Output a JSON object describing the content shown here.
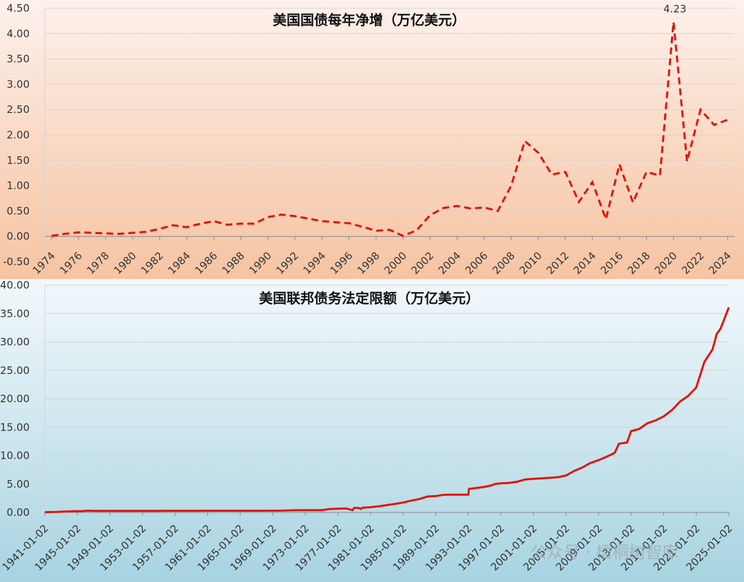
{
  "watermark": "公众号 · 梧桐树智库",
  "colors": {
    "line": "#e3120b",
    "grid": "#d4d4d4",
    "axis": "#888888",
    "negative_tick": "#e3120b"
  },
  "chart_data": [
    {
      "id": "top",
      "type": "line",
      "style": "dashed",
      "title": "美国国债每年净增（万亿美元）",
      "x_tick_labels": [
        "1974",
        "1976",
        "1978",
        "1980",
        "1982",
        "1984",
        "1986",
        "1988",
        "1990",
        "1992",
        "1994",
        "1996",
        "1998",
        "2000",
        "2002",
        "2004",
        "2006",
        "2008",
        "2010",
        "2012",
        "2014",
        "2016",
        "2018",
        "2020",
        "2022",
        "2024"
      ],
      "y_tick_labels": [
        "-0.50",
        "0.00",
        "0.50",
        "1.00",
        "1.50",
        "2.00",
        "2.50",
        "3.00",
        "3.50",
        "4.00",
        "4.50"
      ],
      "ylim": [
        -0.5,
        4.5
      ],
      "xlim": [
        1973.5,
        2024.5
      ],
      "annotation": {
        "text": "4.23",
        "x": 2020,
        "y": 4.23
      },
      "series": [
        {
          "x": [
            1974,
            1975,
            1976,
            1977,
            1978,
            1979,
            1980,
            1981,
            1982,
            1983,
            1984,
            1985,
            1986,
            1987,
            1988,
            1989,
            1990,
            1991,
            1992,
            1993,
            1994,
            1995,
            1996,
            1997,
            1998,
            1999,
            2000,
            2001,
            2002,
            2003,
            2004,
            2005,
            2006,
            2007,
            2008,
            2009,
            2010,
            2011,
            2012,
            2013,
            2014,
            2015,
            2016,
            2017,
            2018,
            2019,
            2020,
            2021,
            2022,
            2023,
            2024
          ],
          "y": [
            0.01,
            0.05,
            0.08,
            0.07,
            0.06,
            0.05,
            0.07,
            0.09,
            0.15,
            0.22,
            0.18,
            0.25,
            0.3,
            0.23,
            0.25,
            0.25,
            0.38,
            0.43,
            0.4,
            0.35,
            0.3,
            0.28,
            0.26,
            0.19,
            0.11,
            0.13,
            0.01,
            0.12,
            0.42,
            0.56,
            0.6,
            0.55,
            0.57,
            0.5,
            1.0,
            1.88,
            1.65,
            1.22,
            1.27,
            0.68,
            1.07,
            0.34,
            1.42,
            0.67,
            1.27,
            1.2,
            4.23,
            1.48,
            2.5,
            2.2,
            2.3
          ]
        }
      ]
    },
    {
      "id": "bottom",
      "type": "line",
      "style": "solid",
      "title": "美国联邦债务法定限额（万亿美元）",
      "x_tick_labels": [
        "1941-01-02",
        "1945-01-02",
        "1949-01-02",
        "1953-01-02",
        "1957-01-02",
        "1961-01-02",
        "1965-01-02",
        "1969-01-02",
        "1973-01-02",
        "1977-01-02",
        "1981-01-02",
        "1985-01-02",
        "1989-01-02",
        "1993-01-02",
        "1997-01-02",
        "2001-01-02",
        "2005-01-02",
        "2009-01-02",
        "2013-01-02",
        "2017-01-02",
        "2021-01-02",
        "2025-01-02"
      ],
      "y_tick_labels": [
        "0.00",
        "5.00",
        "10.00",
        "15.00",
        "20.00",
        "25.00",
        "30.00",
        "35.00",
        "40.00"
      ],
      "ylim": [
        0,
        40
      ],
      "xlim": [
        1941.0,
        2025.0
      ],
      "series": [
        {
          "x": [
            1941.0,
            1942.5,
            1944.0,
            1945.5,
            1946.3,
            1947.0,
            1950.0,
            1955.0,
            1960.0,
            1962.0,
            1965.0,
            1970.0,
            1972.0,
            1975.0,
            1976.0,
            1977.0,
            1978.0,
            1978.8,
            1979.0,
            1979.5,
            1979.8,
            1980.0,
            1981.0,
            1982.0,
            1983.0,
            1984.0,
            1985.0,
            1986.0,
            1987.0,
            1988.0,
            1989.0,
            1990.0,
            1990.8,
            1991.0,
            1992.0,
            1993.0,
            1993.1,
            1994.0,
            1995.0,
            1996.0,
            1996.2,
            1997.0,
            1998.0,
            1999.0,
            2000.0,
            2001.0,
            2002.0,
            2003.0,
            2004.0,
            2005.0,
            2006.0,
            2007.0,
            2008.0,
            2009.0,
            2010.0,
            2011.0,
            2011.5,
            2012.0,
            2012.5,
            2013.0,
            2014.0,
            2015.0,
            2016.0,
            2017.0,
            2018.0,
            2019.0,
            2020.0,
            2021.0,
            2022.0,
            2023.0,
            2023.5,
            2024.0,
            2025.0
          ],
          "y": [
            0.05,
            0.1,
            0.2,
            0.24,
            0.3,
            0.27,
            0.27,
            0.28,
            0.29,
            0.3,
            0.3,
            0.31,
            0.4,
            0.4,
            0.6,
            0.65,
            0.7,
            0.4,
            0.8,
            0.8,
            0.6,
            0.83,
            0.92,
            1.08,
            1.29,
            1.5,
            1.73,
            2.08,
            2.35,
            2.8,
            2.87,
            3.1,
            3.12,
            3.12,
            3.12,
            3.12,
            4.15,
            4.3,
            4.5,
            4.8,
            5.0,
            5.12,
            5.2,
            5.4,
            5.8,
            5.9,
            6.0,
            6.1,
            6.2,
            6.5,
            7.3,
            7.9,
            8.7,
            9.2,
            9.8,
            10.5,
            12.1,
            12.2,
            12.3,
            14.3,
            14.7,
            15.7,
            16.2,
            16.9,
            18.0,
            19.5,
            20.5,
            22.0,
            26.5,
            28.7,
            31.38,
            32.4,
            36.1
          ]
        }
      ]
    }
  ]
}
